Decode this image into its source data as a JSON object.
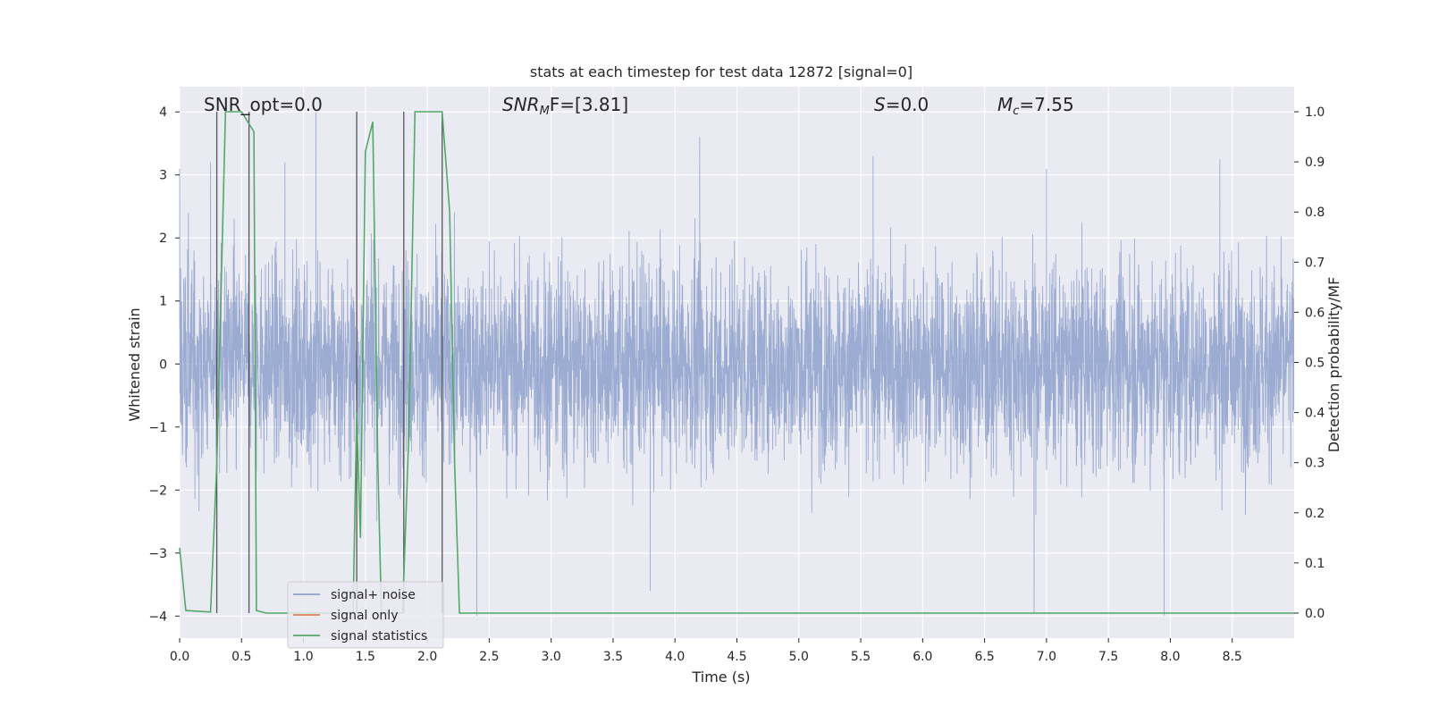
{
  "chart_data": {
    "type": "line",
    "title": "stats at each timestep for test data 12872 [signal=0]",
    "xlabel": "Time (s)",
    "ylabel": "Whitened strain",
    "y2label": "Detection probability/MF",
    "xlim": [
      0.0,
      9.0
    ],
    "ylim": [
      -4.35,
      4.4
    ],
    "y2lim": [
      -0.05,
      1.05
    ],
    "xticks": [
      0.0,
      0.5,
      1.0,
      1.5,
      2.0,
      2.5,
      3.0,
      3.5,
      4.0,
      4.5,
      5.0,
      5.5,
      6.0,
      6.5,
      7.0,
      7.5,
      8.0,
      8.5
    ],
    "yticks": [
      -4,
      -3,
      -2,
      -1,
      0,
      1,
      2,
      3,
      4
    ],
    "y2ticks": [
      0.0,
      0.1,
      0.2,
      0.3,
      0.4,
      0.5,
      0.6,
      0.7,
      0.8,
      0.9,
      1.0
    ],
    "grid": true,
    "legend_placement": "lower-left",
    "annotations": [
      {
        "id": "snr-opt",
        "label": "SNR_opt=0.0"
      },
      {
        "id": "snr-mf",
        "prefix": "SNR",
        "sub": "M",
        "suffix": "F=[3.81]"
      },
      {
        "id": "s",
        "prefix": "S",
        "suffix": "=0.0"
      },
      {
        "id": "mc",
        "prefix": "M",
        "sub": "c",
        "suffix": "=7.55"
      }
    ],
    "series": [
      {
        "name": "signal+ noise",
        "color": "#8da0cb",
        "axis": "left",
        "noise_envelope": {
          "core_std": 0.8,
          "typical_max": 2.5,
          "peaks": [
            {
              "x": 0.0,
              "y": 3.1
            },
            {
              "x": 0.25,
              "y": 3.2
            },
            {
              "x": 0.85,
              "y": 3.2
            },
            {
              "x": 1.1,
              "y": 4.0
            },
            {
              "x": 4.2,
              "y": 3.6
            },
            {
              "x": 5.6,
              "y": 3.3
            },
            {
              "x": 7.0,
              "y": 3.1
            },
            {
              "x": 8.4,
              "y": 3.25
            }
          ],
          "troughs": [
            {
              "x": 2.4,
              "y": -4.0
            },
            {
              "x": 3.8,
              "y": -3.6
            },
            {
              "x": 6.9,
              "y": -3.95
            },
            {
              "x": 7.95,
              "y": -4.0
            }
          ]
        }
      },
      {
        "name": "signal only",
        "color": "#dd8452",
        "axis": "left",
        "x": [],
        "y": []
      },
      {
        "name": "signal statistics",
        "color": "#55a868",
        "axis": "right",
        "x": [
          0.0,
          0.05,
          0.25,
          0.3,
          0.37,
          0.5,
          0.55,
          0.6,
          0.62,
          0.7,
          1.4,
          1.43,
          1.46,
          1.5,
          1.56,
          1.6,
          1.63,
          1.8,
          1.85,
          1.9,
          2.12,
          2.18,
          2.22,
          2.26,
          9.0
        ],
        "y": [
          0.13,
          0.005,
          0.002,
          0.3,
          1.0,
          1.0,
          0.98,
          0.96,
          0.005,
          0.0,
          0.0,
          0.4,
          0.15,
          0.92,
          0.98,
          0.3,
          0.0,
          0.0,
          0.35,
          1.0,
          1.0,
          0.8,
          0.3,
          0.0,
          0.0
        ]
      }
    ],
    "vertical_markers": [
      0.3,
      0.56,
      1.43,
      1.81,
      2.12
    ]
  },
  "colors": {
    "plot_bg": "#eaeaf2",
    "grid": "#ffffff",
    "marker": "#555555"
  }
}
